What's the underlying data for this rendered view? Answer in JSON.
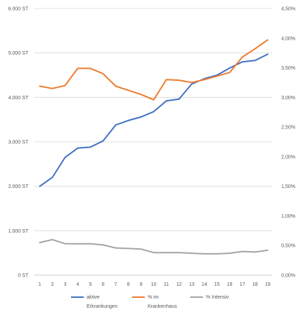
{
  "chart_data": {
    "type": "line",
    "title": "",
    "xlabel": "",
    "ylabel": "",
    "x": [
      1,
      2,
      3,
      4,
      5,
      6,
      7,
      8,
      9,
      10,
      11,
      12,
      13,
      14,
      15,
      16,
      17,
      18,
      19
    ],
    "x_tick_labels": [
      "1",
      "2",
      "3",
      "4",
      "5",
      "6",
      "7",
      "8",
      "9",
      "10",
      "11",
      "12",
      "13",
      "14",
      "15",
      "16",
      "17",
      "18",
      "19"
    ],
    "ylim_left": [
      0,
      6000
    ],
    "y_ticks_left": [
      "0 ST",
      "1.000 ST",
      "2.000 ST",
      "3.000 ST",
      "4.000 ST",
      "5.000 ST",
      "6.000 ST"
    ],
    "ylim_right": [
      0,
      4.5
    ],
    "y_ticks_right": [
      "0,00%",
      "0,50%",
      "1,00%",
      "1,50%",
      "2,00%",
      "2,50%",
      "3,00%",
      "3,50%",
      "4,00%",
      "4,50%"
    ],
    "grid": "horizontal",
    "legend_position": "bottom",
    "series": [
      {
        "name": "aktive Erkrankungen",
        "axis": "left",
        "color": "#4472C4",
        "values": [
          2000,
          2200,
          2650,
          2860,
          2880,
          3020,
          3380,
          3480,
          3560,
          3680,
          3920,
          3960,
          4300,
          4420,
          4500,
          4660,
          4800,
          4830,
          4970
        ]
      },
      {
        "name": "% im Krankenhaus",
        "axis": "right",
        "color": "#ED7D31",
        "values": [
          3.19,
          3.15,
          3.2,
          3.49,
          3.49,
          3.4,
          3.19,
          3.12,
          3.05,
          2.96,
          3.3,
          3.29,
          3.25,
          3.3,
          3.36,
          3.42,
          3.68,
          3.82,
          3.97
        ]
      },
      {
        "name": "% Intensiv",
        "axis": "right",
        "color": "#A5A5A5",
        "values": [
          0.55,
          0.6,
          0.53,
          0.53,
          0.53,
          0.51,
          0.46,
          0.45,
          0.44,
          0.38,
          0.38,
          0.38,
          0.37,
          0.36,
          0.36,
          0.37,
          0.4,
          0.39,
          0.42
        ]
      }
    ],
    "legend": [
      {
        "line1": "aktive",
        "line2": "Erkrankungen",
        "color": "#4472C4"
      },
      {
        "line1": "% im",
        "line2": "Krankenhaus",
        "color": "#ED7D31"
      },
      {
        "line1": "% Intensiv",
        "line2": "",
        "color": "#A5A5A5"
      }
    ]
  }
}
